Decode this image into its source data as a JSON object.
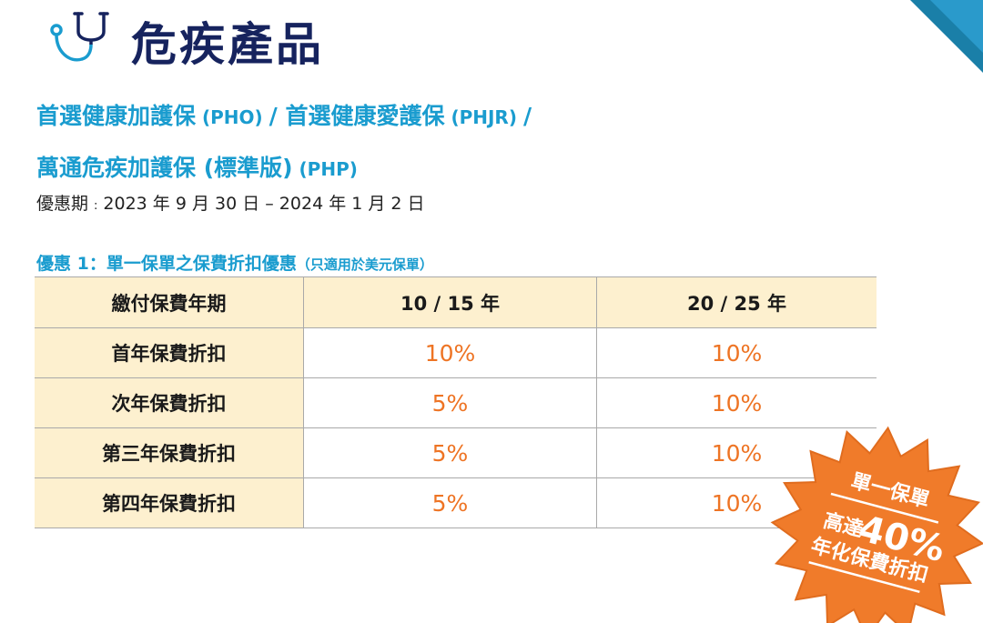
{
  "header": {
    "title": "危疾產品",
    "icon": "stethoscope-icon",
    "accent_color": "#16235e",
    "corner_color": "#1a7fa8"
  },
  "subtitle": {
    "line1_part1": "首選健康加護保",
    "line1_code1": " (PHO) ",
    "line1_slash1": "/",
    "line1_part2": " 首選健康愛護保",
    "line1_code2": " (PHJR) ",
    "line1_slash2": "/",
    "line2_part1": "萬通危疾加護保 (標準版)",
    "line2_code": " (PHP)",
    "color": "#1a9ccf"
  },
  "period": {
    "label": "優惠期",
    "separator": ":",
    "value": "2023 年 9 月 30 日 – 2024 年 1 月 2 日"
  },
  "offer": {
    "title": "優惠 1：單一保單之保費折扣優惠",
    "note": "（只適用於美元保單）"
  },
  "table": {
    "headers": [
      "繳付保費年期",
      "10 / 15 年",
      "20 / 25 年"
    ],
    "rows": [
      {
        "label": "首年保費折扣",
        "a": "10%",
        "b": "10%"
      },
      {
        "label": "次年保費折扣",
        "a": "5%",
        "b": "10%"
      },
      {
        "label": "第三年保費折扣",
        "a": "5%",
        "b": "10%"
      },
      {
        "label": "第四年保費折扣",
        "a": "5%",
        "b": "10%"
      }
    ],
    "header_bg": "#fdf0cf",
    "value_color": "#ee7424"
  },
  "badge": {
    "line1": "單一保單",
    "line2_prefix": "高達",
    "line2_value": "40%",
    "line3": "年化保費折扣",
    "color": "#f07b2a"
  }
}
